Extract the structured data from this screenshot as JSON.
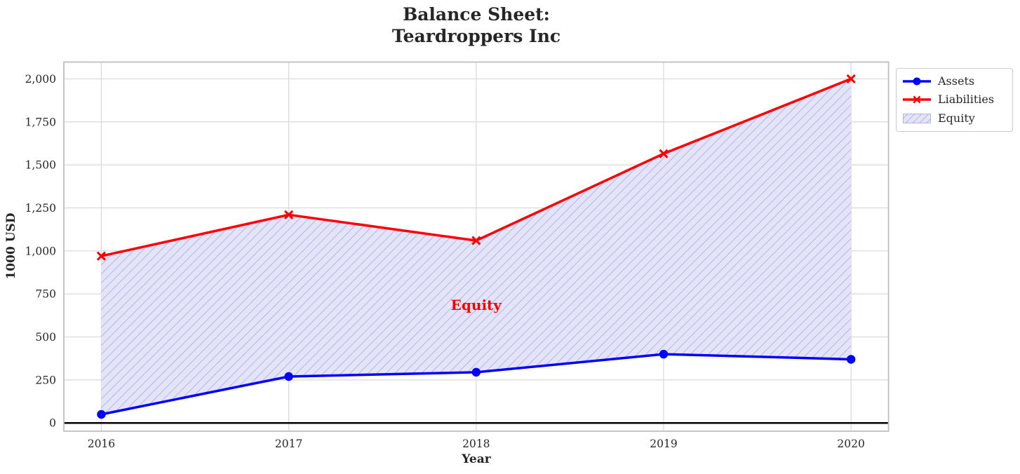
{
  "figure": {
    "title_line1": "Balance Sheet:",
    "title_line2": "Teardroppers Inc"
  },
  "chart_data": {
    "type": "line",
    "title": "Balance Sheet:\nTeardroppers Inc",
    "xlabel": "Year",
    "ylabel": "1000 USD",
    "x": [
      2016,
      2017,
      2018,
      2019,
      2020
    ],
    "x_tick_labels": [
      "2016",
      "2017",
      "2018",
      "2019",
      "2020"
    ],
    "y_ticks": [
      0,
      250,
      500,
      750,
      1000,
      1250,
      1500,
      1750,
      2000
    ],
    "y_tick_labels": [
      "0",
      "250",
      "500",
      "750",
      "1,000",
      "1,250",
      "1,500",
      "1,750",
      "2,000"
    ],
    "xlim": [
      2015.8,
      2020.2
    ],
    "ylim": [
      -47.5,
      2097.5
    ],
    "grid": true,
    "zero_line": true,
    "series": [
      {
        "name": "Assets",
        "color": "#0000ff",
        "marker": "circle",
        "values": [
          50,
          270,
          295,
          400,
          370
        ]
      },
      {
        "name": "Liabilities",
        "color": "#ff0000",
        "marker": "x",
        "values": [
          970,
          1210,
          1060,
          1565,
          2000
        ]
      }
    ],
    "fill_between": {
      "label": "Equity",
      "upper_series": "Liabilities",
      "lower_series": "Assets",
      "fill_color": "#e4e4f8",
      "hatch": "/",
      "hatch_color": "#a8a8e6",
      "edge_color": "#b3b3e8"
    },
    "annotation": {
      "text": "Equity",
      "x": 2018,
      "y": 685,
      "color": "#ff0000"
    },
    "legend": {
      "position": "outside-upper-right",
      "entries": [
        "Assets",
        "Liabilities",
        "Equity"
      ]
    },
    "colors": {
      "grid": "#d8d8d8",
      "spine": "#bfbfbf",
      "zero_line": "#000000",
      "text": "#262626"
    }
  }
}
